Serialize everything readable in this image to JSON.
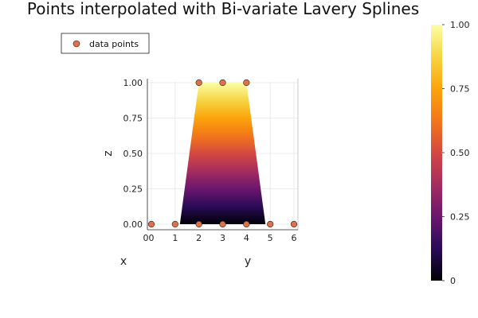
{
  "chart_data": {
    "type": "surface",
    "title": "Points interpolated with Bi-variate Lavery Splines",
    "xlabel": "x",
    "ylabel": "y",
    "zlabel": "z",
    "y_ticks": [
      0,
      1,
      2,
      3,
      4,
      5,
      6
    ],
    "x_ticks": [
      0
    ],
    "z_ticks": [
      "0.00",
      "0.25",
      "0.50",
      "0.75",
      "1.00"
    ],
    "zlim": [
      0,
      1
    ],
    "ylim": [
      0,
      6
    ],
    "surface_profile": {
      "y": [
        0,
        1,
        1.2,
        2,
        4,
        4.8,
        5,
        6
      ],
      "z": [
        0,
        0,
        0,
        1,
        1,
        0,
        0,
        0
      ]
    },
    "series": [
      {
        "name": "data points",
        "color": "#e26f46",
        "points": [
          {
            "y": 0,
            "z": 0
          },
          {
            "y": 1,
            "z": 0
          },
          {
            "y": 2,
            "z": 0
          },
          {
            "y": 3,
            "z": 0
          },
          {
            "y": 4,
            "z": 0
          },
          {
            "y": 5,
            "z": 0
          },
          {
            "y": 6,
            "z": 0
          },
          {
            "y": 2,
            "z": 1
          },
          {
            "y": 3,
            "z": 1
          },
          {
            "y": 4,
            "z": 1
          }
        ]
      }
    ],
    "legend": {
      "position": "top-left",
      "entries": [
        "data points"
      ]
    },
    "colorbar": {
      "range": [
        0,
        1
      ],
      "ticks": [
        "0",
        "0.25",
        "0.50",
        "0.75",
        "1.00"
      ],
      "colormap": "inferno",
      "stops": [
        "#000004",
        "#2a0b57",
        "#6a176e",
        "#a52c60",
        "#d44842",
        "#f3761b",
        "#fba40a",
        "#f6d542",
        "#fcffa4"
      ]
    },
    "grid": true
  }
}
